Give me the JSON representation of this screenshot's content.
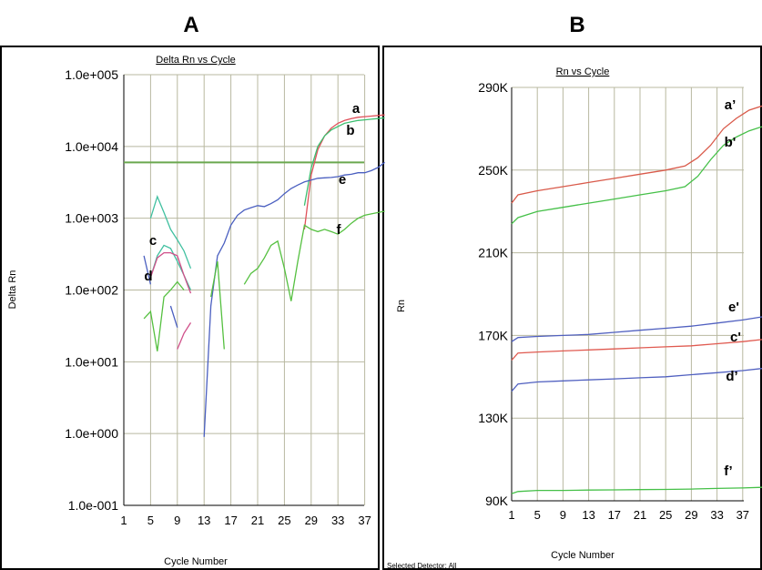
{
  "panels": [
    {
      "letter": "A"
    },
    {
      "letter": "B"
    }
  ],
  "chart_data": [
    {
      "type": "line",
      "title": "Delta Rn vs Cycle",
      "xlabel": "Cycle Number",
      "ylabel": "Delta Rn",
      "yscale": "log",
      "ylim": [
        0.1,
        100000
      ],
      "yticks": [
        "1.0e+005",
        "1.0e+004",
        "1.0e+003",
        "1.0e+002",
        "1.0e+001",
        "1.0e+000",
        "1.0e-001"
      ],
      "xticks": [
        "1",
        "5",
        "9",
        "13",
        "17",
        "21",
        "25",
        "29",
        "33",
        "37"
      ],
      "xlim": [
        1,
        40
      ],
      "threshold": 6000,
      "grid": true,
      "series": [
        {
          "name": "a",
          "color": "#e0505a",
          "points": [
            [
              28,
              700
            ],
            [
              29,
              4000
            ],
            [
              30,
              9000
            ],
            [
              31,
              14000
            ],
            [
              32,
              18000
            ],
            [
              33,
              21000
            ],
            [
              34,
              23000
            ],
            [
              35,
              24500
            ],
            [
              36,
              25500
            ],
            [
              37,
              26000
            ],
            [
              38,
              26500
            ],
            [
              39,
              27000
            ],
            [
              40,
              27500
            ]
          ]
        },
        {
          "name": "b",
          "color": "#3cbf70",
          "points": [
            [
              28,
              1500
            ],
            [
              29,
              5000
            ],
            [
              30,
              10000
            ],
            [
              31,
              14000
            ],
            [
              32,
              17000
            ],
            [
              33,
              19000
            ],
            [
              34,
              21000
            ],
            [
              35,
              22000
            ],
            [
              36,
              23000
            ],
            [
              37,
              23500
            ],
            [
              38,
              24000
            ],
            [
              39,
              24500
            ],
            [
              40,
              25000
            ]
          ]
        },
        {
          "name": "c",
          "color": "#40c0a0",
          "points": [
            [
              5,
              150
            ],
            [
              6,
              300
            ],
            [
              7,
              420
            ],
            [
              8,
              380
            ],
            [
              9,
              250
            ],
            [
              10,
              160
            ],
            [
              11,
              100
            ]
          ]
        },
        {
          "name": "c2",
          "color": "#40c0a0",
          "points": [
            [
              5,
              1000
            ],
            [
              6,
              2000
            ],
            [
              7,
              1200
            ],
            [
              8,
              700
            ],
            [
              9,
              500
            ],
            [
              10,
              350
            ],
            [
              11,
              200
            ]
          ]
        },
        {
          "name": "d",
          "color": "#d0508a",
          "points": [
            [
              5,
              150
            ],
            [
              6,
              280
            ],
            [
              7,
              330
            ],
            [
              8,
              330
            ],
            [
              9,
              300
            ],
            [
              10,
              160
            ],
            [
              11,
              90
            ]
          ]
        },
        {
          "name": "d2",
          "color": "#d0508a",
          "points": [
            [
              9,
              15
            ],
            [
              10,
              25
            ],
            [
              11,
              35
            ]
          ]
        },
        {
          "name": "e",
          "color": "#4a5fc0",
          "points": [
            [
              4,
              300
            ],
            [
              5,
              120
            ]
          ]
        },
        {
          "name": "e2",
          "color": "#4a5fc0",
          "points": [
            [
              8,
              60
            ],
            [
              9,
              30
            ]
          ]
        },
        {
          "name": "e3",
          "color": "#4a5fc0",
          "points": [
            [
              13,
              0.9
            ],
            [
              14,
              60
            ],
            [
              15,
              300
            ],
            [
              16,
              450
            ],
            [
              17,
              800
            ],
            [
              18,
              1100
            ],
            [
              19,
              1300
            ],
            [
              20,
              1400
            ],
            [
              21,
              1500
            ],
            [
              22,
              1450
            ],
            [
              23,
              1600
            ],
            [
              24,
              1800
            ],
            [
              25,
              2200
            ],
            [
              26,
              2600
            ],
            [
              27,
              2900
            ],
            [
              28,
              3200
            ],
            [
              29,
              3400
            ],
            [
              30,
              3600
            ],
            [
              31,
              3650
            ],
            [
              32,
              3700
            ],
            [
              33,
              3800
            ],
            [
              34,
              4000
            ],
            [
              35,
              4100
            ],
            [
              36,
              4300
            ],
            [
              37,
              4300
            ],
            [
              38,
              4600
            ],
            [
              39,
              5100
            ],
            [
              40,
              6000
            ]
          ]
        },
        {
          "name": "f",
          "color": "#55c040",
          "points": [
            [
              4,
              40
            ],
            [
              5,
              50
            ],
            [
              6,
              14
            ],
            [
              7,
              80
            ],
            [
              8,
              100
            ],
            [
              9,
              130
            ],
            [
              10,
              100
            ]
          ]
        },
        {
          "name": "f2",
          "color": "#55c040",
          "points": [
            [
              14,
              80
            ],
            [
              15,
              250
            ],
            [
              16,
              15
            ]
          ]
        },
        {
          "name": "f3",
          "color": "#55c040",
          "points": [
            [
              19,
              120
            ],
            [
              20,
              170
            ],
            [
              21,
              200
            ],
            [
              22,
              280
            ],
            [
              23,
              420
            ],
            [
              24,
              480
            ],
            [
              25,
              200
            ],
            [
              26,
              70
            ],
            [
              27,
              250
            ],
            [
              28,
              800
            ],
            [
              29,
              700
            ],
            [
              30,
              650
            ],
            [
              31,
              700
            ],
            [
              32,
              650
            ],
            [
              33,
              600
            ],
            [
              34,
              700
            ],
            [
              35,
              850
            ],
            [
              36,
              1000
            ],
            [
              37,
              1100
            ],
            [
              38,
              1150
            ],
            [
              39,
              1200
            ],
            [
              40,
              1250
            ]
          ]
        }
      ],
      "annotations": [
        "a",
        "b",
        "c",
        "d",
        "e",
        "f"
      ]
    },
    {
      "type": "line",
      "title": "Rn vs Cycle",
      "xlabel": "Cycle Number",
      "ylabel": "Rn",
      "ylim": [
        90000,
        290000
      ],
      "yticks": [
        "290K",
        "250K",
        "210K",
        "170K",
        "130K",
        "90K"
      ],
      "xticks": [
        "1",
        "5",
        "9",
        "13",
        "17",
        "21",
        "25",
        "29",
        "33",
        "37"
      ],
      "xlim": [
        1,
        40
      ],
      "grid": true,
      "series": [
        {
          "name": "a’",
          "color": "#d95a4a",
          "points": [
            [
              1,
              234000
            ],
            [
              2,
              238000
            ],
            [
              5,
              240000
            ],
            [
              9,
              242000
            ],
            [
              13,
              244000
            ],
            [
              17,
              246000
            ],
            [
              21,
              248000
            ],
            [
              25,
              250000
            ],
            [
              28,
              252000
            ],
            [
              30,
              256000
            ],
            [
              32,
              262000
            ],
            [
              34,
              270000
            ],
            [
              36,
              275000
            ],
            [
              38,
              279000
            ],
            [
              40,
              281000
            ]
          ]
        },
        {
          "name": "b'",
          "color": "#45c048",
          "points": [
            [
              1,
              224000
            ],
            [
              2,
              227000
            ],
            [
              5,
              230000
            ],
            [
              9,
              232000
            ],
            [
              13,
              234000
            ],
            [
              17,
              236000
            ],
            [
              21,
              238000
            ],
            [
              25,
              240000
            ],
            [
              28,
              242000
            ],
            [
              30,
              247000
            ],
            [
              32,
              255000
            ],
            [
              34,
              262000
            ],
            [
              36,
              266000
            ],
            [
              38,
              269000
            ],
            [
              40,
              271000
            ]
          ]
        },
        {
          "name": "e'",
          "color": "#5060c0",
          "points": [
            [
              1,
              167000
            ],
            [
              2,
              169000
            ],
            [
              5,
              169500
            ],
            [
              9,
              170000
            ],
            [
              13,
              170500
            ],
            [
              17,
              171500
            ],
            [
              21,
              172500
            ],
            [
              25,
              173500
            ],
            [
              29,
              174500
            ],
            [
              33,
              176000
            ],
            [
              37,
              177500
            ],
            [
              40,
              179000
            ]
          ]
        },
        {
          "name": "c'",
          "color": "#e05a50",
          "points": [
            [
              1,
              158000
            ],
            [
              2,
              161500
            ],
            [
              5,
              162000
            ],
            [
              9,
              162500
            ],
            [
              13,
              163000
            ],
            [
              17,
              163500
            ],
            [
              21,
              164000
            ],
            [
              25,
              164500
            ],
            [
              29,
              165000
            ],
            [
              33,
              166000
            ],
            [
              37,
              167000
            ],
            [
              40,
              168000
            ]
          ]
        },
        {
          "name": "d’",
          "color": "#5060c0",
          "points": [
            [
              1,
              143000
            ],
            [
              2,
              146500
            ],
            [
              5,
              147500
            ],
            [
              9,
              148000
            ],
            [
              13,
              148500
            ],
            [
              17,
              149000
            ],
            [
              21,
              149500
            ],
            [
              25,
              150000
            ],
            [
              29,
              151000
            ],
            [
              33,
              152000
            ],
            [
              37,
              153000
            ],
            [
              40,
              154000
            ]
          ]
        },
        {
          "name": "f’",
          "color": "#45c048",
          "points": [
            [
              1,
              93500
            ],
            [
              2,
              94500
            ],
            [
              5,
              95000
            ],
            [
              9,
              95000
            ],
            [
              13,
              95200
            ],
            [
              17,
              95300
            ],
            [
              21,
              95400
            ],
            [
              25,
              95500
            ],
            [
              29,
              95700
            ],
            [
              33,
              96000
            ],
            [
              37,
              96200
            ],
            [
              40,
              96500
            ]
          ]
        }
      ],
      "annotations": [
        "a’",
        "b'",
        "e'",
        "c'",
        "d’",
        "f’"
      ],
      "footer": "Selected Detector: All"
    }
  ]
}
